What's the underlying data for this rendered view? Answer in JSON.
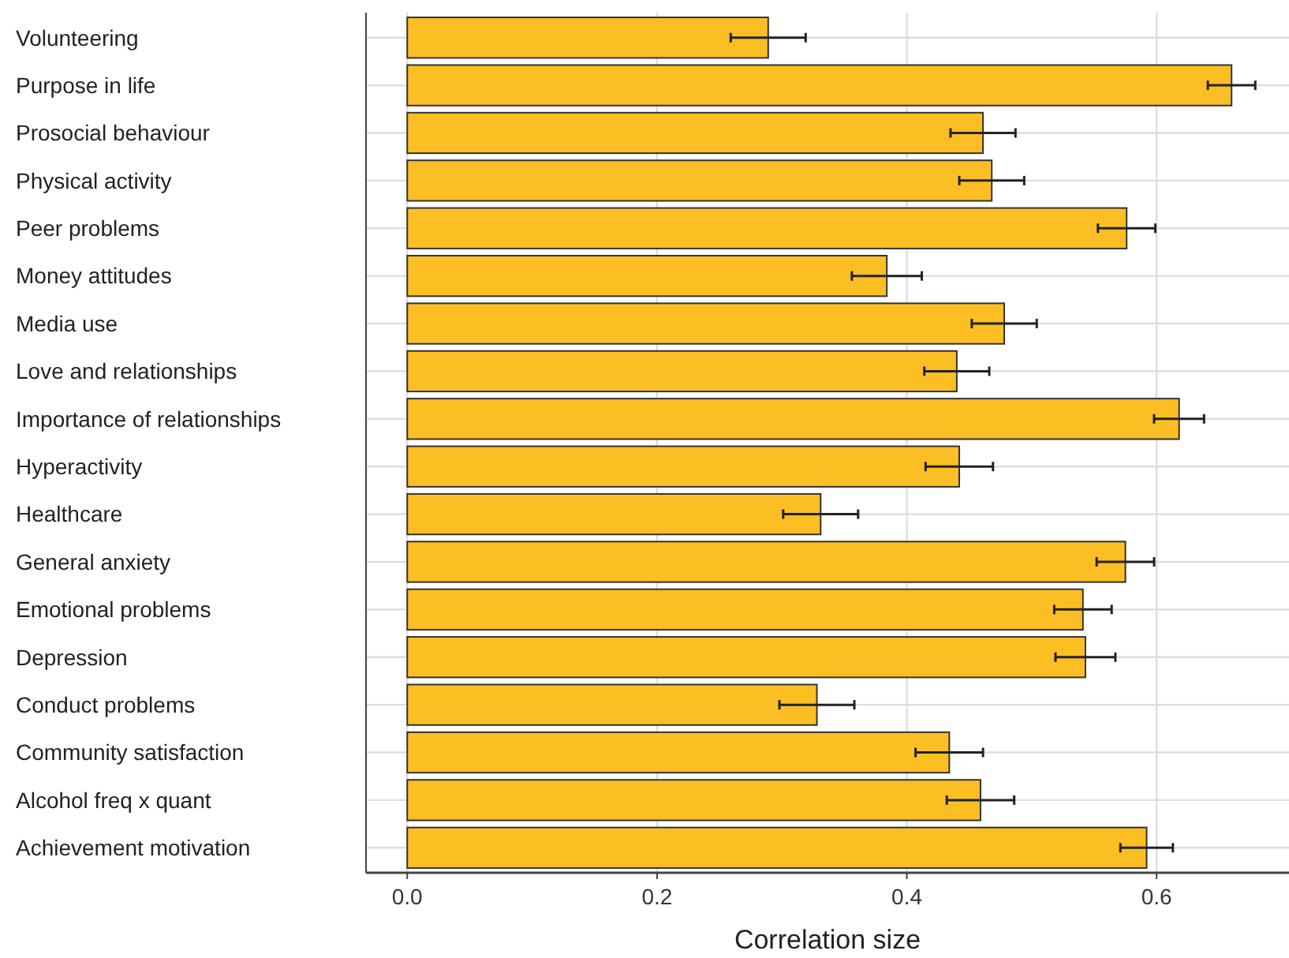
{
  "chart_data": {
    "type": "bar",
    "orientation": "horizontal",
    "xlabel": "Correlation size",
    "categories": [
      "Volunteering",
      "Purpose in life",
      "Prosocial behaviour",
      "Physical activity",
      "Peer problems",
      "Money attitudes",
      "Media use",
      "Love and relationships",
      "Importance of relationships",
      "Hyperactivity",
      "Healthcare",
      "General anxiety",
      "Emotional problems",
      "Depression",
      "Conduct problems",
      "Community satisfaction",
      "Alcohol freq x quant",
      "Achievement motivation"
    ],
    "values": [
      0.289,
      0.66,
      0.461,
      0.468,
      0.576,
      0.384,
      0.478,
      0.44,
      0.618,
      0.442,
      0.331,
      0.575,
      0.541,
      0.543,
      0.328,
      0.434,
      0.459,
      0.592
    ],
    "errors": [
      0.03,
      0.019,
      0.026,
      0.026,
      0.023,
      0.028,
      0.026,
      0.026,
      0.02,
      0.027,
      0.03,
      0.023,
      0.023,
      0.024,
      0.03,
      0.027,
      0.027,
      0.021
    ],
    "color": "#fbbf24",
    "xlim": [
      -0.033,
      0.706
    ],
    "xticks": [
      {
        "value": 0,
        "label": "0.0"
      },
      {
        "value": 0.2,
        "label": "0.2"
      },
      {
        "value": 0.4,
        "label": "0.4"
      },
      {
        "value": 0.6,
        "label": "0.6"
      }
    ],
    "grid": true
  }
}
